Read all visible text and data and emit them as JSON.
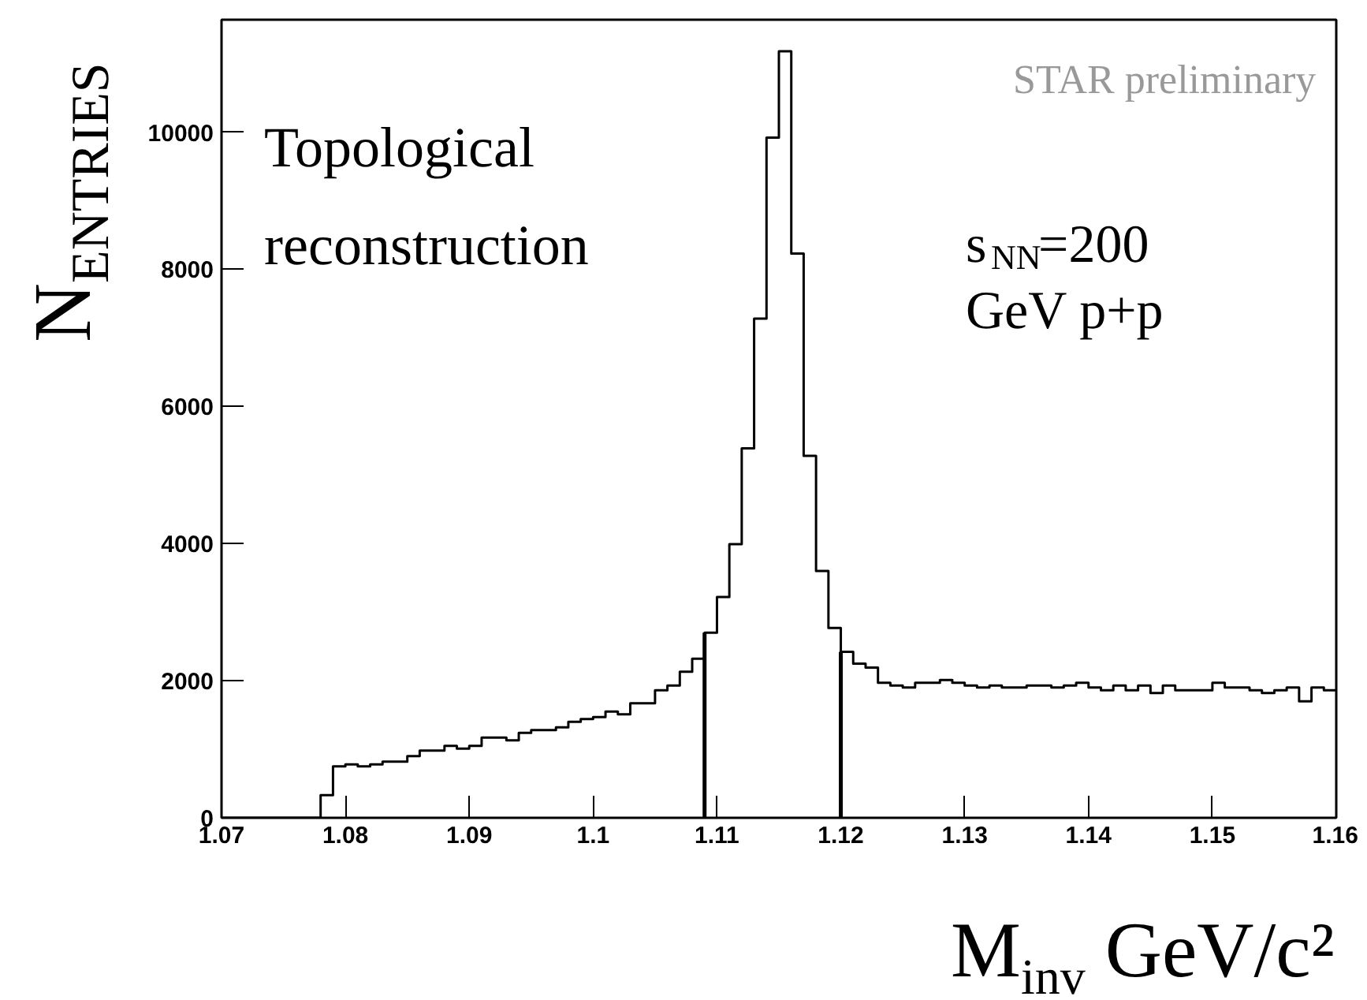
{
  "chart_data": {
    "type": "histogram",
    "xlabel": "M$_{inv}$ GeV/c²",
    "ylabel": "N$_{ENTRIES}$",
    "annotations": [
      "Topological reconstruction",
      "STAR preliminary",
      "s$_{NN}$=200 GeV p+p"
    ],
    "bins": [
      1.07,
      1.071,
      1.072,
      1.073,
      1.074,
      1.075,
      1.076,
      1.077,
      1.078,
      1.079,
      1.08,
      1.081,
      1.082,
      1.083,
      1.084,
      1.085,
      1.086,
      1.087,
      1.088,
      1.089,
      1.09,
      1.091,
      1.092,
      1.093,
      1.094,
      1.095,
      1.096,
      1.097,
      1.098,
      1.099,
      1.1,
      1.101,
      1.102,
      1.103,
      1.104,
      1.105,
      1.106,
      1.107,
      1.108,
      1.109,
      1.11,
      1.111,
      1.112,
      1.113,
      1.114,
      1.115,
      1.116,
      1.117,
      1.118,
      1.119,
      1.12,
      1.121,
      1.122,
      1.123,
      1.124,
      1.125,
      1.126,
      1.127,
      1.128,
      1.129,
      1.13,
      1.131,
      1.132,
      1.133,
      1.134,
      1.135,
      1.136,
      1.137,
      1.138,
      1.139,
      1.14,
      1.141,
      1.142,
      1.143,
      1.144,
      1.145,
      1.146,
      1.147,
      1.148,
      1.149,
      1.15,
      1.151,
      1.152,
      1.153,
      1.154,
      1.155,
      1.156,
      1.157,
      1.158,
      1.159,
      1.16
    ],
    "values": [
      0,
      0,
      0,
      0,
      0,
      0,
      0,
      0,
      330,
      750,
      780,
      750,
      780,
      820,
      820,
      900,
      980,
      980,
      1050,
      1010,
      1050,
      1170,
      1170,
      1130,
      1240,
      1280,
      1280,
      1320,
      1400,
      1440,
      1470,
      1550,
      1510,
      1670,
      1670,
      1860,
      1930,
      2130,
      2320,
      2700,
      3220,
      3990,
      5390,
      7280,
      9920,
      11180,
      8230,
      5280,
      3600,
      2770,
      2420,
      2250,
      2190,
      1970,
      1930,
      1900,
      1970,
      1970,
      2010,
      1970,
      1930,
      1900,
      1930,
      1900,
      1900,
      1930,
      1930,
      1900,
      1930,
      1970,
      1900,
      1860,
      1930,
      1860,
      1930,
      1820,
      1930,
      1860,
      1860,
      1860,
      1970,
      1900,
      1900,
      1860,
      1820,
      1860,
      1900,
      1700,
      1900,
      1860
    ],
    "color": "#000000",
    "xlim": [
      1.07,
      1.16
    ],
    "ylim": [
      0,
      11640
    ],
    "xticks": [
      1.07,
      1.08,
      1.09,
      1.1,
      1.11,
      1.12,
      1.13,
      1.14,
      1.15,
      1.16
    ],
    "yticks": [
      0,
      2000,
      4000,
      6000,
      8000,
      10000
    ],
    "ref_lines": [
      {
        "axis": "x",
        "value": 1.109
      },
      {
        "axis": "x",
        "value": 1.12
      }
    ]
  }
}
